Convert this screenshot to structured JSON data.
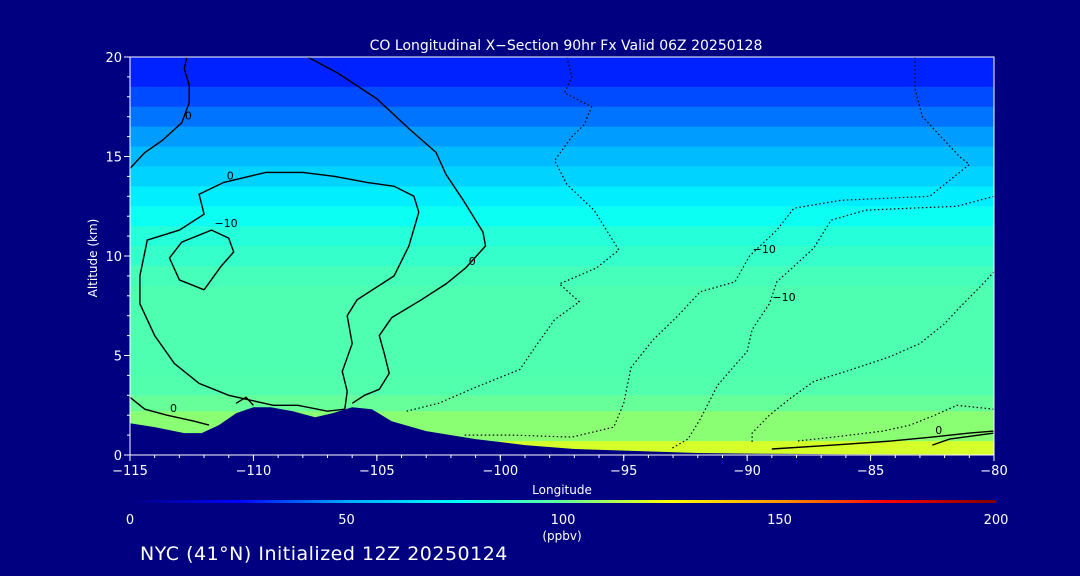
{
  "chart_data": {
    "type": "heatmap",
    "title": "CO Longitudinal X−Section 90hr  Fx Valid 06Z 20250128",
    "xlabel": "Longitude",
    "ylabel": "Altitude (km)",
    "xlim": [
      -115,
      -80
    ],
    "ylim": [
      0,
      20
    ],
    "x_ticks": [
      -115,
      -110,
      -105,
      -100,
      -95,
      -90,
      -85,
      -80
    ],
    "x_tick_labels": [
      "−115",
      "−110",
      "−105",
      "−100",
      "−95",
      "−90",
      "−85",
      "−80"
    ],
    "y_ticks": [
      0,
      5,
      10,
      15,
      20
    ],
    "y_tick_labels": [
      "0",
      "5",
      "10",
      "15",
      "20"
    ],
    "colorbar": {
      "label": "(ppbv)",
      "ticks": [
        0,
        50,
        100,
        150,
        200
      ],
      "tick_labels": [
        "0",
        "50",
        "100",
        "150",
        "200"
      ],
      "range": [
        0,
        200
      ],
      "colors": [
        "#000080",
        "#0000ff",
        "#00aaff",
        "#00ffff",
        "#66ff99",
        "#ffff00",
        "#ff9900",
        "#ff0000",
        "#800000"
      ]
    },
    "field_layers": [
      {
        "alt_top": 20.0,
        "value": 30
      },
      {
        "alt_top": 18.5,
        "value": 36
      },
      {
        "alt_top": 17.5,
        "value": 42
      },
      {
        "alt_top": 16.5,
        "value": 48
      },
      {
        "alt_top": 15.5,
        "value": 55
      },
      {
        "alt_top": 14.5,
        "value": 62
      },
      {
        "alt_top": 13.5,
        "value": 70
      },
      {
        "alt_top": 12.5,
        "value": 78
      },
      {
        "alt_top": 11.5,
        "value": 84
      },
      {
        "alt_top": 10.5,
        "value": 88
      },
      {
        "alt_top": 9.5,
        "value": 92
      },
      {
        "alt_top": 8.5,
        "value": 94
      },
      {
        "alt_top": 4.0,
        "value": 95
      },
      {
        "alt_top": 3.0,
        "value": 100
      },
      {
        "alt_top": 2.2,
        "value": 106
      }
    ],
    "anomaly_contours": [
      {
        "level": 0,
        "label": "0",
        "style": "solid",
        "points": [
          [
            -112.7,
            20
          ],
          [
            -112.8,
            19.4
          ],
          [
            -112.6,
            18.6
          ],
          [
            -112.6,
            17.7
          ],
          [
            -112.9,
            16.7
          ],
          [
            -113.7,
            15.8
          ],
          [
            -114.4,
            15.2
          ],
          [
            -115,
            14.4
          ]
        ]
      },
      {
        "level": 0,
        "label": "0",
        "style": "solid",
        "points": [
          [
            -107.8,
            20
          ],
          [
            -106.6,
            19.2
          ],
          [
            -105.0,
            17.9
          ],
          [
            -103.7,
            16.4
          ],
          [
            -102.6,
            15.2
          ],
          [
            -102.2,
            14.1
          ],
          [
            -101.5,
            12.8
          ],
          [
            -100.7,
            11.2
          ],
          [
            -100.6,
            10.5
          ],
          [
            -101.4,
            9.4
          ],
          [
            -102.2,
            8.6
          ],
          [
            -103.2,
            7.8
          ],
          [
            -104.4,
            6.9
          ],
          [
            -104.9,
            6.0
          ],
          [
            -104.7,
            5.1
          ],
          [
            -104.5,
            4.1
          ],
          [
            -104.9,
            3.3
          ],
          [
            -105.5,
            3.0
          ],
          [
            -106.0,
            2.6
          ]
        ]
      },
      {
        "level": 0,
        "label": "0",
        "style": "solid",
        "points": [
          [
            -106.3,
            2.3
          ],
          [
            -106.2,
            3.2
          ],
          [
            -106.4,
            4.2
          ],
          [
            -106.0,
            5.6
          ],
          [
            -106.2,
            7.0
          ],
          [
            -105.8,
            7.8
          ],
          [
            -104.3,
            9.0
          ],
          [
            -103.7,
            10.5
          ],
          [
            -103.3,
            12.2
          ],
          [
            -103.5,
            13.0
          ],
          [
            -104.3,
            13.5
          ],
          [
            -105.4,
            13.7
          ],
          [
            -106.7,
            14.0
          ],
          [
            -108.0,
            14.2
          ],
          [
            -109.5,
            14.2
          ],
          [
            -111.2,
            13.7
          ],
          [
            -112.2,
            13.1
          ],
          [
            -112.0,
            12.1
          ],
          [
            -113.0,
            11.3
          ],
          [
            -114.3,
            10.8
          ],
          [
            -114.6,
            9.0
          ],
          [
            -114.6,
            7.6
          ],
          [
            -114.0,
            6.0
          ],
          [
            -113.2,
            4.6
          ],
          [
            -112.2,
            3.6
          ],
          [
            -111.0,
            3.0
          ],
          [
            -109.2,
            2.5
          ],
          [
            -108.2,
            2.5
          ],
          [
            -107.0,
            2.2
          ],
          [
            -106.3,
            2.3
          ]
        ]
      },
      {
        "level": 0,
        "label": "0",
        "style": "solid",
        "points": [
          [
            -115,
            2.9
          ],
          [
            -114.4,
            2.3
          ],
          [
            -113.5,
            2.0
          ],
          [
            -112.4,
            1.7
          ],
          [
            -111.8,
            1.5
          ]
        ]
      },
      {
        "level": 0,
        "label": "",
        "style": "solid",
        "points": [
          [
            -110.7,
            2.6
          ],
          [
            -110.3,
            2.9
          ],
          [
            -110.0,
            2.5
          ]
        ]
      },
      {
        "level": -10,
        "label": "−10",
        "style": "solid",
        "points": [
          [
            -112.0,
            8.3
          ],
          [
            -113.0,
            8.8
          ],
          [
            -113.4,
            9.9
          ],
          [
            -112.9,
            10.7
          ],
          [
            -111.7,
            11.3
          ],
          [
            -111.0,
            10.9
          ],
          [
            -110.8,
            10.2
          ],
          [
            -111.3,
            9.5
          ],
          [
            -112.0,
            8.3
          ]
        ]
      },
      {
        "level": 0,
        "label": "",
        "style": "solid",
        "points": [
          [
            -82.5,
            0.5
          ],
          [
            -81.8,
            0.8
          ],
          [
            -80.6,
            1.0
          ],
          [
            -80.0,
            1.1
          ]
        ]
      },
      {
        "level": 0,
        "label": "0",
        "style": "solid",
        "points": [
          [
            -89.0,
            0.3
          ],
          [
            -86.5,
            0.5
          ],
          [
            -84.2,
            0.7
          ],
          [
            -82.5,
            0.9
          ],
          [
            -81.0,
            1.1
          ],
          [
            -80.0,
            1.2
          ]
        ]
      },
      {
        "level": -10,
        "label": "",
        "style": "dotted",
        "points": [
          [
            -97.3,
            20
          ],
          [
            -97.1,
            19.0
          ],
          [
            -97.4,
            18.2
          ],
          [
            -96.3,
            17.5
          ],
          [
            -96.6,
            16.6
          ],
          [
            -97.1,
            16.0
          ],
          [
            -97.8,
            14.8
          ],
          [
            -97.3,
            13.6
          ],
          [
            -96.2,
            12.3
          ],
          [
            -95.2,
            10.3
          ],
          [
            -96.1,
            9.4
          ],
          [
            -97.6,
            8.6
          ],
          [
            -96.8,
            7.7
          ],
          [
            -97.8,
            6.8
          ],
          [
            -98.6,
            5.4
          ],
          [
            -99.2,
            4.3
          ],
          [
            -101.0,
            3.4
          ],
          [
            -102.5,
            2.6
          ],
          [
            -103.8,
            2.2
          ]
        ]
      },
      {
        "level": -10,
        "label": "−10",
        "style": "dotted",
        "points": [
          [
            -83.2,
            20
          ],
          [
            -83.2,
            18.4
          ],
          [
            -82.9,
            17.0
          ],
          [
            -82.0,
            15.8
          ],
          [
            -81.4,
            15.0
          ],
          [
            -81.0,
            14.6
          ],
          [
            -82.6,
            13.0
          ],
          [
            -84.4,
            12.9
          ],
          [
            -86.2,
            12.8
          ],
          [
            -88.1,
            12.4
          ],
          [
            -88.8,
            11.3
          ],
          [
            -89.9,
            10.0
          ],
          [
            -90.5,
            8.7
          ],
          [
            -91.9,
            8.2
          ],
          [
            -92.8,
            7.0
          ],
          [
            -93.8,
            5.8
          ],
          [
            -94.7,
            4.4
          ],
          [
            -95.0,
            2.6
          ],
          [
            -95.4,
            1.4
          ],
          [
            -97.1,
            0.9
          ],
          [
            -99.5,
            1.0
          ],
          [
            -101.5,
            1.0
          ]
        ]
      },
      {
        "level": -10,
        "label": "−10",
        "style": "dotted",
        "points": [
          [
            -80.0,
            13.0
          ],
          [
            -81.5,
            12.5
          ],
          [
            -83.4,
            12.4
          ],
          [
            -85.2,
            12.3
          ],
          [
            -86.6,
            11.8
          ],
          [
            -87.3,
            10.4
          ],
          [
            -88.0,
            9.6
          ],
          [
            -88.8,
            8.7
          ],
          [
            -89.1,
            7.6
          ],
          [
            -89.8,
            6.3
          ],
          [
            -90.0,
            5.2
          ],
          [
            -90.5,
            4.5
          ],
          [
            -91.2,
            3.5
          ],
          [
            -91.9,
            1.8
          ],
          [
            -92.4,
            0.8
          ],
          [
            -93.1,
            0.3
          ]
        ]
      },
      {
        "level": -10,
        "label": "",
        "style": "dotted",
        "points": [
          [
            -80.0,
            9.2
          ],
          [
            -80.6,
            8.4
          ],
          [
            -81.4,
            7.4
          ],
          [
            -82.0,
            6.6
          ],
          [
            -83.0,
            5.6
          ],
          [
            -84.3,
            4.9
          ],
          [
            -86.0,
            4.2
          ],
          [
            -87.3,
            3.7
          ],
          [
            -88.3,
            2.8
          ],
          [
            -89.1,
            2.0
          ],
          [
            -89.8,
            1.1
          ],
          [
            -89.8,
            0.6
          ]
        ]
      },
      {
        "level": -10,
        "label": "",
        "style": "dotted",
        "points": [
          [
            -80.0,
            2.3
          ],
          [
            -81.5,
            2.5
          ],
          [
            -82.4,
            2.0
          ],
          [
            -83.4,
            1.5
          ],
          [
            -84.5,
            1.2
          ],
          [
            -86.5,
            0.9
          ],
          [
            -88.0,
            0.7
          ]
        ]
      }
    ],
    "terrain": [
      [
        -115,
        1.6
      ],
      [
        -114.0,
        1.4
      ],
      [
        -112.8,
        1.1
      ],
      [
        -112.1,
        1.1
      ],
      [
        -111.4,
        1.5
      ],
      [
        -110.7,
        2.1
      ],
      [
        -110.0,
        2.4
      ],
      [
        -109.3,
        2.4
      ],
      [
        -108.4,
        2.2
      ],
      [
        -107.5,
        1.9
      ],
      [
        -106.8,
        2.1
      ],
      [
        -106.0,
        2.4
      ],
      [
        -105.2,
        2.3
      ],
      [
        -104.4,
        1.7
      ],
      [
        -103.0,
        1.2
      ],
      [
        -101.0,
        0.8
      ],
      [
        -99.0,
        0.5
      ],
      [
        -97.0,
        0.3
      ],
      [
        -94.5,
        0.2
      ],
      [
        -92.0,
        0.1
      ],
      [
        -89.0,
        0.06
      ],
      [
        -86.0,
        0.04
      ],
      [
        -83.0,
        0.03
      ],
      [
        -80.0,
        0.02
      ]
    ],
    "surface_band": {
      "value": 120,
      "lon_start": -100,
      "lon_end": -80
    }
  },
  "footer": "NYC (41°N) Initialized 12Z 20250124"
}
